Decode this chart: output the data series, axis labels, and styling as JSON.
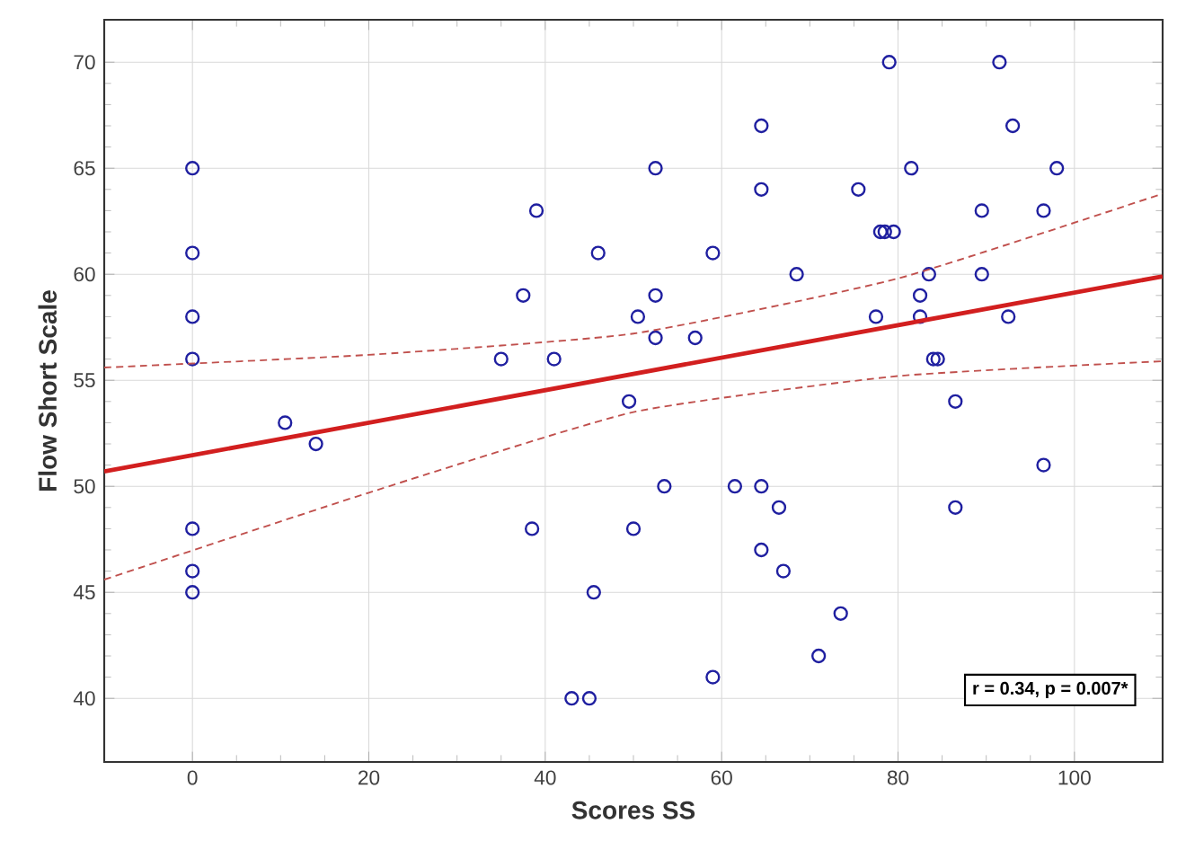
{
  "chart_data": {
    "type": "scatter",
    "xlabel": "Scores SS",
    "ylabel": "Flow Short Scale",
    "xlim": [
      -10,
      110
    ],
    "ylim": [
      37,
      72
    ],
    "xticks": [
      0,
      20,
      40,
      60,
      80,
      100
    ],
    "yticks": [
      40,
      45,
      50,
      55,
      60,
      65,
      70
    ],
    "grid": true,
    "series": [
      {
        "color": "#1f1fa0",
        "marker": "circle",
        "x": [
          0,
          0,
          0,
          0,
          0,
          0,
          0,
          10.5,
          14,
          35,
          37.5,
          39,
          38.5,
          41,
          43,
          45,
          45.5,
          46,
          49.5,
          50,
          50.5,
          52.5,
          52.5,
          52.5,
          53.5,
          57,
          59,
          59,
          61.5,
          64.5,
          64.5,
          64.5,
          64.5,
          66.5,
          67,
          68.5,
          71,
          73.5,
          75.5,
          77.5,
          78,
          78.5,
          79,
          79.5,
          81.5,
          82.5,
          82.5,
          83.5,
          84,
          84.5,
          86.5,
          86.5,
          89.5,
          89.5,
          91.5,
          92.5,
          93,
          96.5,
          96.5,
          98
        ],
        "values": [
          65,
          61,
          58,
          56,
          48,
          46,
          45,
          53,
          52,
          56,
          59,
          63,
          48,
          56,
          40,
          40,
          45,
          61,
          54,
          48,
          58,
          59,
          57,
          65,
          50,
          57,
          61,
          41,
          50,
          67,
          64,
          50,
          47,
          49,
          46,
          60,
          42,
          44,
          64,
          58,
          62,
          62,
          70,
          62,
          65,
          59,
          58,
          60,
          56,
          56,
          54,
          49,
          63,
          60,
          70,
          58,
          67,
          63,
          51,
          65
        ]
      },
      {
        "type": "line",
        "color": "#d21f1f",
        "line_style": "solid",
        "x": [
          -10,
          110
        ],
        "values": [
          50.7,
          59.9
        ]
      },
      {
        "type": "line",
        "color": "#c0504d",
        "line_style": "dashed",
        "x": [
          -10,
          20,
          50,
          80,
          110
        ],
        "values": [
          55.6,
          56.2,
          57.2,
          59.8,
          63.8
        ]
      },
      {
        "type": "line",
        "color": "#c0504d",
        "line_style": "dashed",
        "x": [
          -10,
          20,
          50,
          80,
          110
        ],
        "values": [
          45.6,
          49.7,
          53.5,
          55.2,
          55.9
        ]
      }
    ],
    "annotations": [
      "r = 0.34, p = 0.007*"
    ]
  }
}
